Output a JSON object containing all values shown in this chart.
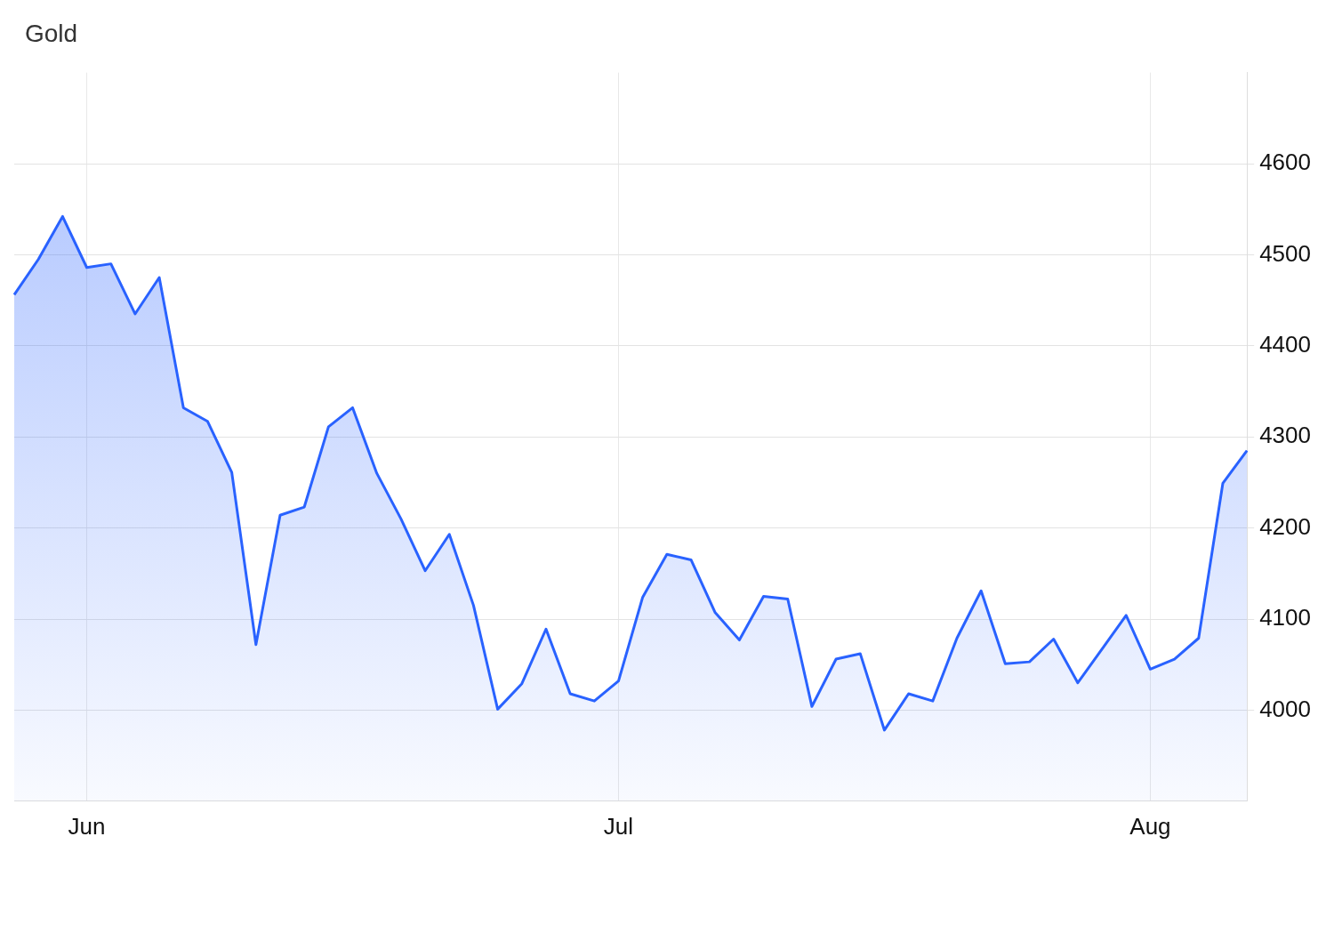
{
  "chart_data": {
    "type": "area",
    "title": "Gold",
    "categories": [
      null,
      null,
      null,
      "Jun",
      null,
      null,
      null,
      null,
      null,
      null,
      null,
      null,
      null,
      null,
      null,
      null,
      null,
      null,
      null,
      null,
      null,
      null,
      null,
      null,
      null,
      "Jul",
      null,
      null,
      null,
      null,
      null,
      null,
      null,
      null,
      null,
      null,
      null,
      null,
      null,
      null,
      null,
      null,
      null,
      null,
      null,
      null,
      null,
      "Aug",
      null,
      null,
      null,
      null
    ],
    "series": [
      {
        "color": "#2962ff",
        "values": [
          4456,
          4495,
          4542,
          4486,
          4490,
          4435,
          4475,
          4332,
          4317,
          4261,
          4072,
          4214,
          4223,
          4311,
          4332,
          4260,
          4210,
          4153,
          4193,
          4115,
          4001,
          4029,
          4089,
          4018,
          4010,
          4032,
          4124,
          4171,
          4165,
          4107,
          4077,
          4125,
          4122,
          4004,
          4056,
          4062,
          3978,
          4018,
          4010,
          4079,
          4131,
          4051,
          4053,
          4078,
          4030,
          4067,
          4104,
          4045,
          4056,
          4079,
          4249,
          4285
        ]
      }
    ],
    "ylim": [
      3900,
      4700
    ],
    "yticks": [
      4000,
      4100,
      4200,
      4300,
      4400,
      4500,
      4600
    ],
    "grid": true,
    "legend": false,
    "marker": "none",
    "line_style": "solid"
  }
}
